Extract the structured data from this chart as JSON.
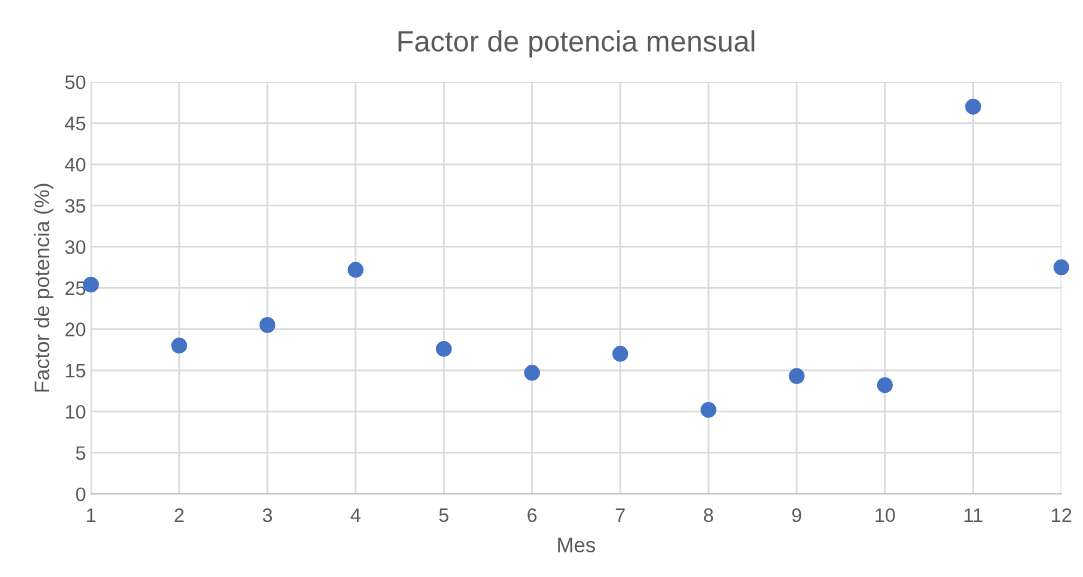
{
  "chart_data": {
    "type": "scatter",
    "title": "Factor de potencia mensual",
    "xlabel": "Mes",
    "ylabel": "Factor de potencia (%)",
    "x": [
      1,
      2,
      3,
      4,
      5,
      6,
      7,
      8,
      9,
      10,
      11,
      12
    ],
    "series": [
      {
        "color": "#4472c4",
        "values": [
          25.4,
          18.0,
          20.5,
          27.2,
          17.6,
          14.7,
          17.0,
          10.2,
          14.3,
          13.2,
          47.0,
          27.5
        ]
      }
    ],
    "xlim": [
      1,
      12
    ],
    "xticks": [
      1,
      2,
      3,
      4,
      5,
      6,
      7,
      8,
      9,
      10,
      11,
      12
    ],
    "ylim": [
      0,
      50
    ],
    "yticks": [
      0,
      5,
      10,
      15,
      20,
      25,
      30,
      35,
      40,
      45,
      50
    ],
    "grid": true,
    "marker": "circle"
  }
}
